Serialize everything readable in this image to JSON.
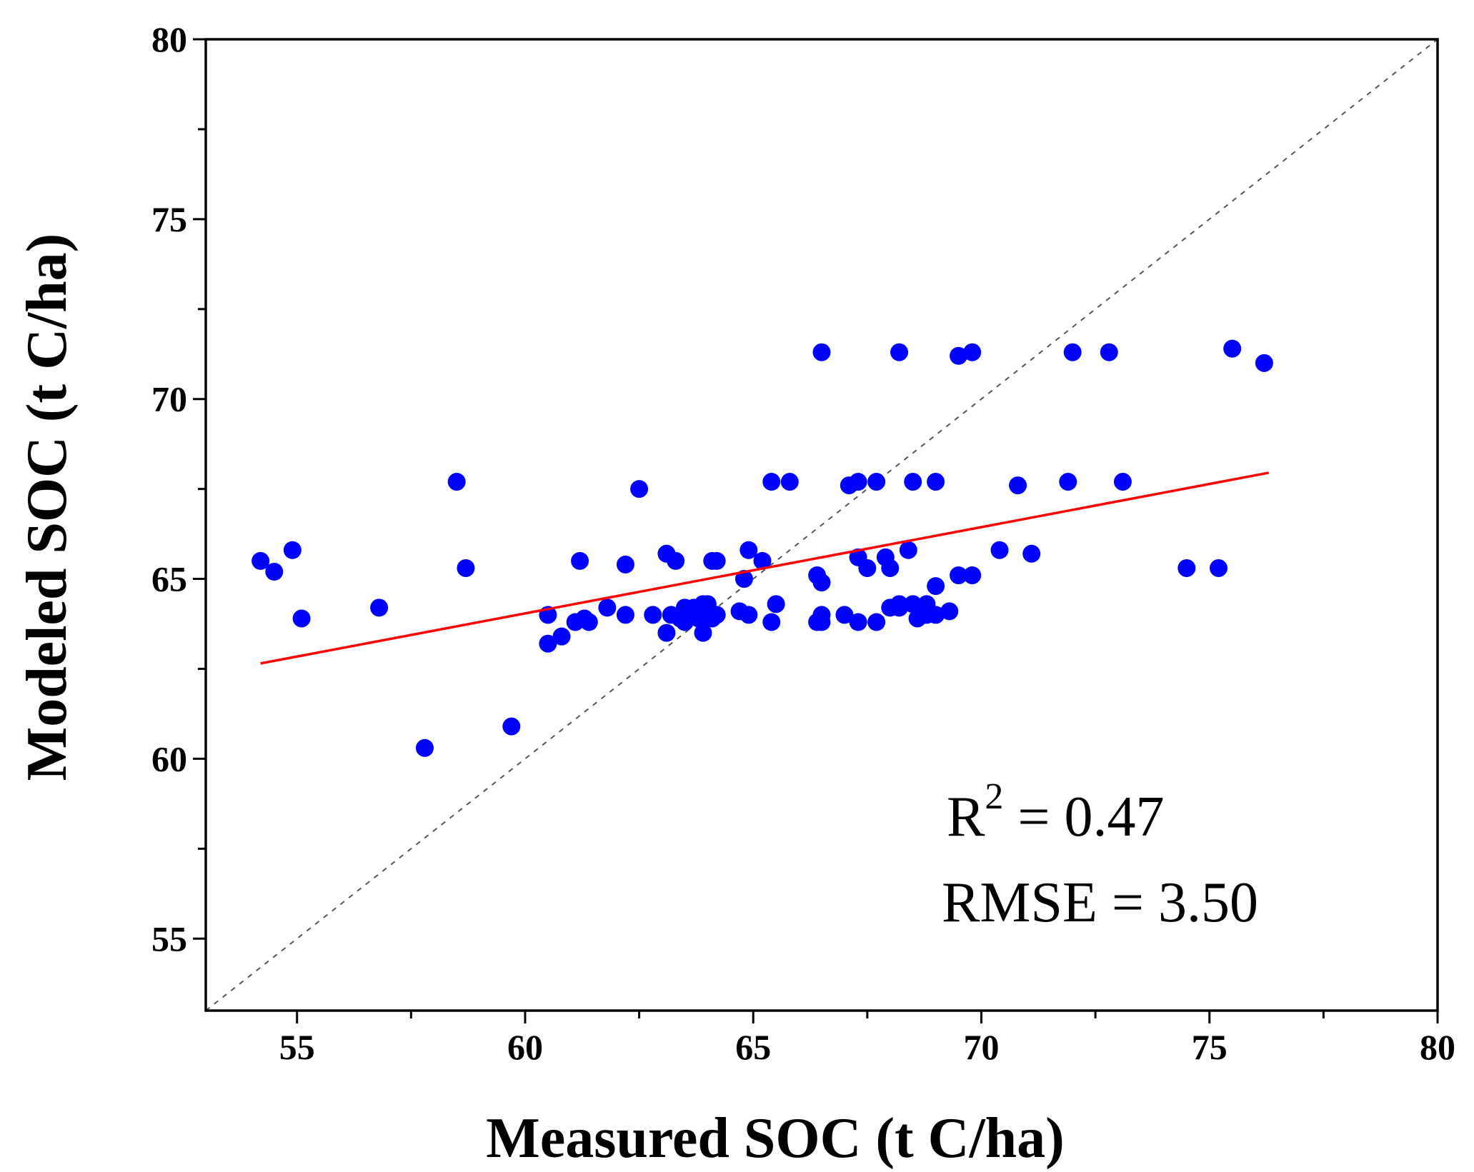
{
  "chart_data": {
    "type": "scatter",
    "xlabel": "Measured SOC (t C/ha)",
    "ylabel": "Modeled SOC (t C/ha)",
    "xlim": [
      53,
      80
    ],
    "ylim": [
      53,
      80
    ],
    "xticks": [
      "55",
      "60",
      "65",
      "70",
      "75",
      "80"
    ],
    "yticks": [
      "55",
      "60",
      "65",
      "70",
      "75",
      "80"
    ],
    "grid": false,
    "legend": "none",
    "annotations": {
      "r2_prefix": "R",
      "r2_exp": "2",
      "r2_rest": " = 0.47",
      "rmse": "RMSE = 3.50"
    },
    "colors": {
      "points": "#0000ff",
      "fit": "#ff0000",
      "identity": "#555555",
      "axes": "#000000"
    },
    "one_to_one_line": {
      "x": [
        53,
        80
      ],
      "y": [
        53,
        80
      ]
    },
    "regression_line": {
      "x": [
        54.2,
        76.3
      ],
      "y": [
        62.65,
        67.95
      ]
    },
    "points": {
      "x": [
        54.2,
        54.5,
        54.9,
        55.1,
        56.8,
        57.8,
        58.5,
        58.7,
        59.7,
        60.5,
        60.5,
        60.8,
        61.1,
        61.2,
        61.3,
        61.4,
        61.8,
        62.2,
        62.2,
        62.5,
        62.8,
        63.1,
        63.1,
        63.2,
        63.3,
        63.4,
        63.5,
        63.5,
        63.7,
        63.8,
        63.9,
        63.9,
        64.0,
        64.1,
        64.1,
        64.2,
        64.2,
        64.7,
        64.8,
        64.9,
        64.9,
        65.2,
        65.4,
        65.4,
        65.5,
        65.8,
        66.4,
        66.4,
        66.5,
        66.5,
        66.5,
        66.5,
        67.0,
        67.1,
        67.3,
        67.3,
        67.3,
        67.5,
        67.7,
        67.7,
        67.9,
        68.0,
        68.0,
        68.2,
        68.2,
        68.2,
        68.4,
        68.5,
        68.5,
        68.6,
        68.8,
        68.8,
        69.0,
        69.0,
        69.0,
        69.3,
        69.5,
        69.5,
        69.8,
        69.8,
        70.4,
        70.8,
        71.1,
        71.9,
        72.0,
        72.8,
        73.1,
        74.5,
        75.2,
        75.5,
        76.2
      ],
      "y": [
        65.5,
        65.2,
        65.8,
        63.9,
        64.2,
        60.3,
        67.7,
        65.3,
        60.9,
        64.0,
        63.2,
        63.4,
        63.8,
        65.5,
        63.9,
        63.8,
        64.2,
        65.4,
        64.0,
        67.5,
        64.0,
        65.7,
        63.5,
        64.0,
        65.5,
        63.9,
        64.2,
        63.8,
        64.2,
        63.9,
        64.3,
        63.5,
        64.3,
        65.5,
        63.9,
        65.5,
        64.0,
        64.1,
        65.0,
        64.0,
        65.8,
        65.5,
        67.7,
        63.8,
        64.3,
        67.7,
        63.8,
        65.1,
        64.0,
        64.9,
        63.8,
        71.3,
        64.0,
        67.6,
        67.7,
        65.6,
        63.8,
        65.3,
        67.7,
        63.8,
        65.6,
        65.3,
        64.2,
        71.3,
        64.3,
        64.2,
        65.8,
        67.7,
        64.3,
        63.9,
        64.3,
        64.0,
        67.7,
        64.8,
        64.0,
        64.1,
        65.1,
        71.2,
        65.1,
        71.3,
        65.8,
        67.6,
        65.7,
        67.7,
        71.3,
        71.3,
        67.7,
        65.3,
        65.3,
        71.4,
        71.0
      ]
    }
  }
}
